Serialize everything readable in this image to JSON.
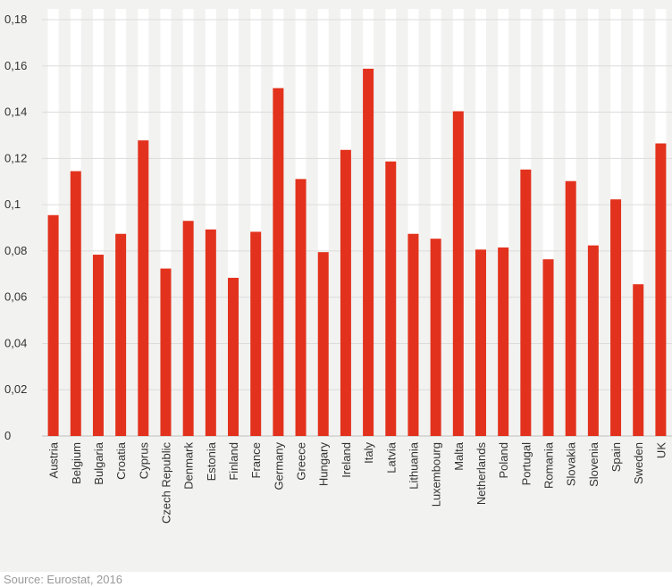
{
  "chart_data": {
    "type": "bar",
    "categories": [
      "Austria",
      "Belgium",
      "Bulgaria",
      "Croatia",
      "Cyprus",
      "Czech Republic",
      "Denmark",
      "Estonia",
      "Finland",
      "France",
      "Germany",
      "Greece",
      "Hungary",
      "Ireland",
      "Italy",
      "Latvia",
      "Lithuania",
      "Luxembourg",
      "Malta",
      "Netherlands",
      "Poland",
      "Portugal",
      "Romania",
      "Slovakia",
      "Slovenia",
      "Spain",
      "Sweden",
      "UK"
    ],
    "values": [
      0.0955,
      0.1145,
      0.0784,
      0.0874,
      0.1278,
      0.0724,
      0.093,
      0.0893,
      0.0684,
      0.0883,
      0.1504,
      0.1111,
      0.0795,
      0.1237,
      0.1588,
      0.1187,
      0.0874,
      0.0853,
      0.1404,
      0.0806,
      0.0815,
      0.1152,
      0.0764,
      0.1102,
      0.0824,
      0.1023,
      0.0656,
      0.1265
    ],
    "yticks": [
      "0",
      "0,02",
      "0,04",
      "0,06",
      "0,08",
      "0,1",
      "0,12",
      "0,14",
      "0,16",
      "0,18"
    ],
    "ylim": [
      0,
      0.185
    ],
    "grid": true,
    "colors": {
      "bar": "#e2321d",
      "background": "#f2f2f1",
      "column": "#ffffff",
      "grid": "#dcdcdc"
    }
  },
  "source": "Source: Eurostat, 2016"
}
